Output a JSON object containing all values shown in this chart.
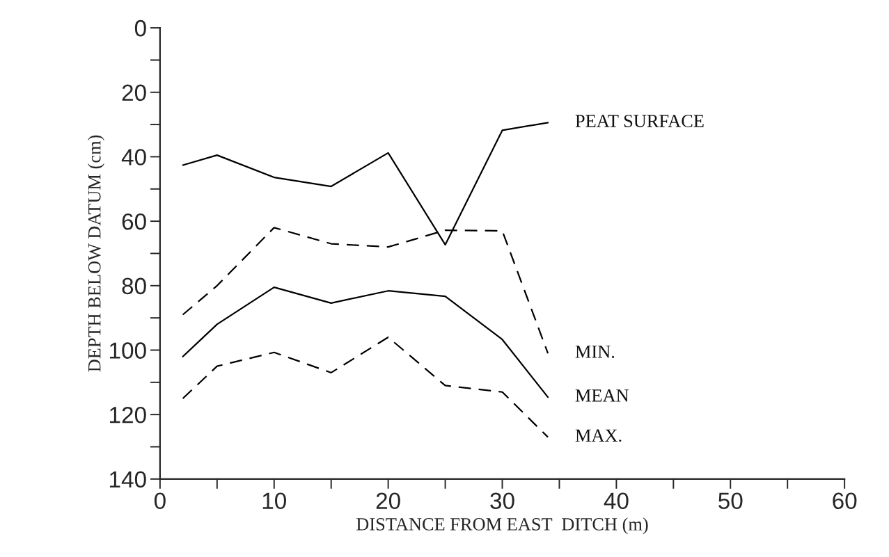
{
  "chart_data": {
    "type": "line",
    "xlabel": "DISTANCE FROM EAST  DITCH (m)",
    "ylabel": "DEPTH BELOW DATUM (cm)",
    "x": [
      2,
      5,
      10,
      15,
      20,
      25,
      30,
      34
    ],
    "series": [
      {
        "name": "PEAT SURFACE",
        "color": "#000000",
        "line_style": "solid",
        "values": [
          42.6,
          39.5,
          46.4,
          49.2,
          38.8,
          67.3,
          31.8,
          29.4
        ]
      },
      {
        "name": "MIN.",
        "color": "#000000",
        "line_style": "dashed",
        "values": [
          89,
          80,
          62,
          67,
          68,
          62.8,
          63,
          101
        ]
      },
      {
        "name": "MEAN",
        "color": "#000000",
        "line_style": "solid",
        "values": [
          102,
          92,
          80.5,
          85.4,
          81.6,
          83.3,
          96.7,
          114.6
        ]
      },
      {
        "name": "MAX.",
        "color": "#000000",
        "line_style": "dashed",
        "values": [
          115,
          105,
          100.7,
          107,
          96,
          111,
          113,
          127
        ]
      }
    ],
    "xlim": [
      0,
      60
    ],
    "ylim": [
      140,
      0
    ],
    "xticks": [
      0,
      {
        "value": 5,
        "label": null
      },
      10,
      {
        "value": 15,
        "label": null
      },
      20,
      {
        "value": 25,
        "label": null
      },
      30,
      {
        "value": 35,
        "label": null
      },
      40,
      {
        "value": 45,
        "label": null
      },
      50,
      {
        "value": 55,
        "label": null
      },
      60
    ],
    "yticks": [
      0,
      {
        "value": 10,
        "label": null
      },
      20,
      {
        "value": 30,
        "label": null
      },
      40,
      {
        "value": 50,
        "label": null
      },
      60,
      {
        "value": 70,
        "label": null
      },
      80,
      {
        "value": 90,
        "label": null
      },
      100,
      {
        "value": 110,
        "label": null
      },
      120,
      {
        "value": 130,
        "label": null
      },
      140
    ],
    "grid": false,
    "marker": "none"
  }
}
